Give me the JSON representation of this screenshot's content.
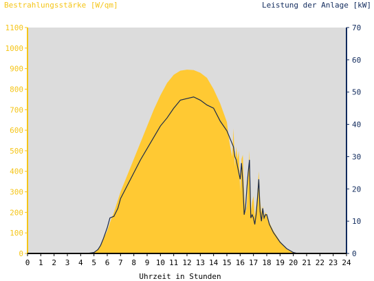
{
  "chart_data": {
    "type": "area",
    "left_axis_title": "Bestrahlungsstärke [W/qm]",
    "right_axis_title": "Leistung der Anlage [kW]",
    "xlabel": "Uhrzeit in Stunden",
    "xlim": [
      0,
      24
    ],
    "ylim_left": [
      0,
      1100
    ],
    "ylim_right": [
      0,
      70
    ],
    "x_ticks": [
      "0",
      "1",
      "2",
      "3",
      "4",
      "5",
      "6",
      "7",
      "8",
      "9",
      "10",
      "11",
      "12",
      "13",
      "14",
      "15",
      "16",
      "17",
      "18",
      "19",
      "20",
      "21",
      "22",
      "23",
      "24"
    ],
    "y_ticks_left": [
      "0",
      "100",
      "200",
      "300",
      "400",
      "500",
      "600",
      "700",
      "800",
      "900",
      "1000",
      "1100"
    ],
    "y_ticks_right": [
      "0",
      "10",
      "20",
      "30",
      "40",
      "50",
      "60",
      "70"
    ],
    "colors": {
      "irradiance": "#ffc933",
      "power": "#1b2a4a",
      "plot_bg": "#dcdcdc",
      "left_axis": "#f5c518",
      "right_axis": "#102a5c"
    },
    "series": [
      {
        "axis": "left",
        "x": [
          0,
          4.5,
          5.0,
          5.3,
          5.5,
          5.7,
          6.0,
          6.2,
          6.5,
          6.8,
          7.0,
          7.5,
          8.0,
          8.5,
          9.0,
          9.5,
          10.0,
          10.5,
          11.0,
          11.5,
          12.0,
          12.5,
          13.0,
          13.5,
          14.0,
          14.5,
          15.0,
          15.2,
          15.4,
          15.5,
          15.6,
          15.7,
          15.8,
          15.9,
          16.0,
          16.1,
          16.2,
          16.3,
          16.4,
          16.5,
          16.6,
          16.7,
          16.8,
          16.9,
          17.0,
          17.1,
          17.2,
          17.3,
          17.4,
          17.5,
          17.6,
          17.7,
          17.8,
          17.9,
          18.0,
          18.2,
          18.5,
          19.0,
          19.5,
          20.0,
          20.3,
          24
        ],
        "values": [
          0,
          0,
          5,
          20,
          40,
          70,
          110,
          150,
          200,
          260,
          300,
          380,
          460,
          540,
          620,
          700,
          770,
          830,
          870,
          890,
          895,
          893,
          880,
          855,
          800,
          730,
          640,
          540,
          470,
          610,
          420,
          520,
          460,
          500,
          300,
          460,
          480,
          290,
          200,
          230,
          380,
          500,
          200,
          250,
          280,
          180,
          220,
          300,
          400,
          260,
          200,
          230,
          180,
          200,
          190,
          150,
          110,
          60,
          20,
          5,
          0,
          0
        ]
      },
      {
        "axis": "right",
        "x": [
          0,
          4.5,
          5.0,
          5.3,
          5.5,
          5.7,
          6.0,
          6.2,
          6.5,
          6.8,
          7.0,
          7.5,
          8.0,
          8.5,
          9.0,
          9.5,
          10.0,
          10.5,
          11.0,
          11.5,
          12.0,
          12.5,
          13.0,
          13.5,
          14.0,
          14.5,
          15.0,
          15.2,
          15.4,
          15.5,
          15.6,
          15.7,
          15.8,
          15.9,
          16.0,
          16.1,
          16.2,
          16.3,
          16.4,
          16.5,
          16.6,
          16.7,
          16.8,
          16.9,
          17.0,
          17.1,
          17.2,
          17.3,
          17.4,
          17.5,
          17.6,
          17.7,
          17.8,
          17.9,
          18.0,
          18.2,
          18.5,
          19.0,
          19.5,
          20.0,
          20.3,
          24
        ],
        "values": [
          0,
          0,
          0.3,
          1.2,
          2.5,
          4.5,
          8,
          11,
          11.5,
          14,
          17,
          21,
          25,
          29,
          32.5,
          36,
          39.5,
          42,
          45,
          47.5,
          48,
          48.5,
          47.5,
          46,
          45,
          41,
          38,
          36,
          34,
          33,
          30,
          29,
          27,
          25,
          23,
          28,
          22,
          12,
          14,
          20,
          25,
          29,
          11,
          12,
          11,
          9,
          12,
          17,
          23,
          13,
          10,
          14,
          11,
          12,
          12,
          9,
          6.5,
          3.5,
          1.5,
          0.3,
          0,
          0
        ]
      }
    ]
  }
}
